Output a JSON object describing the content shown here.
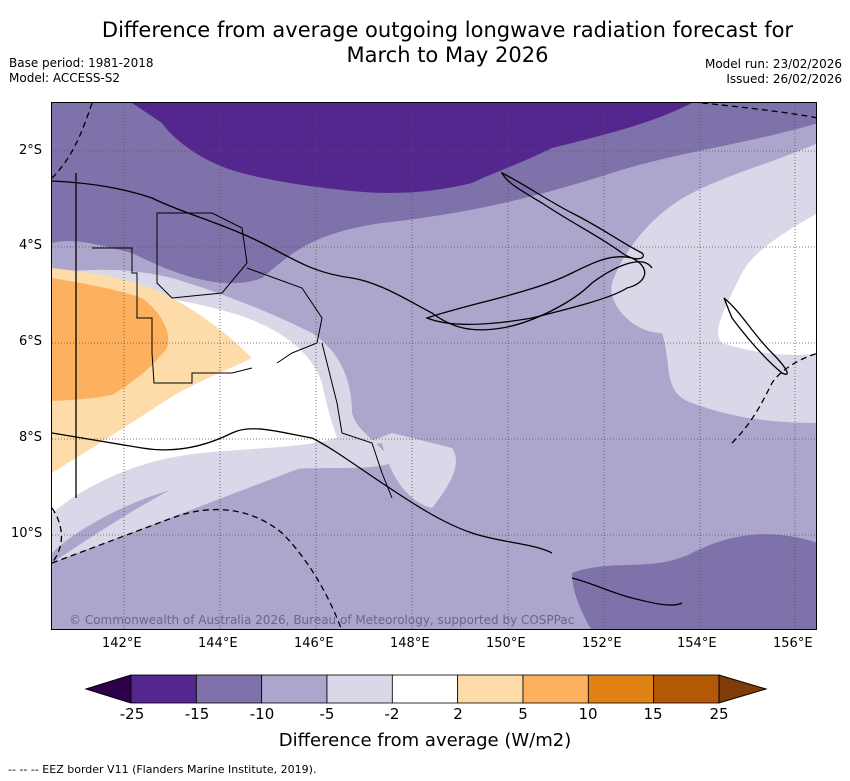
{
  "title": {
    "line1": "Difference from average outgoing longwave radiation forecast for",
    "line2": "March to May 2026"
  },
  "meta_left": {
    "base_period": "Base period: 1981-2018",
    "model": "Model: ACCESS-S2"
  },
  "meta_right": {
    "model_run": "Model run: 23/02/2026",
    "issued": "Issued: 26/02/2026"
  },
  "map": {
    "region": "Papua New Guinea",
    "lat_labels": [
      "2°S",
      "4°S",
      "6°S",
      "8°S",
      "10°S"
    ],
    "lon_labels": [
      "142°E",
      "144°E",
      "146°E",
      "148°E",
      "150°E",
      "152°E",
      "154°E",
      "156°E"
    ],
    "copyright": "© Commonwealth of Australia 2026, Bureau of Meteorology, supported by COSPPac"
  },
  "colorbar": {
    "ticks": [
      "-25",
      "-15",
      "-10",
      "-5",
      "-2",
      "2",
      "5",
      "10",
      "15",
      "25"
    ],
    "colors": [
      "#54278f",
      "#7f71a9",
      "#aca6cc",
      "#d8d8e8",
      "#ffffff",
      "#fedcaa",
      "#fdb15e",
      "#e08214",
      "#b35806"
    ],
    "under_color": "#2d004b",
    "over_color": "#7f3b08",
    "label": "Difference from average (W/m2)"
  },
  "footnote": "--  --  -- EEZ border V11 (Flanders Marine Institute, 2019)."
}
